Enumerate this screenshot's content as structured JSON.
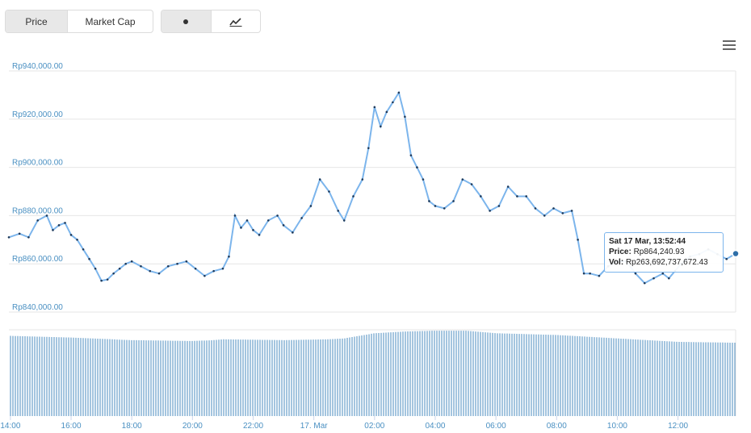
{
  "controls": {
    "metric": {
      "options": [
        "Price",
        "Market Cap"
      ],
      "selected": "Price"
    },
    "chart_type": {
      "options": [
        "dot-icon",
        "line-chart-icon"
      ],
      "selected": "dot-icon"
    },
    "menu_icon": "hamburger-menu-icon"
  },
  "tooltip": {
    "date": "Sat 17 Mar, 13:52:44",
    "price_label": "Price:",
    "price_value": "Rp864,240.93",
    "vol_label": "Vol:",
    "vol_value": "Rp263,692,737,672.43"
  },
  "chart_data": {
    "type": "line",
    "colors": {
      "line": "#7cb5ec",
      "marker": "#1f3a5a",
      "volume": "#4a8bbf",
      "axis_text": "#4a90c2"
    },
    "y_ticks": [
      "Rp940,000.00",
      "Rp920,000.00",
      "Rp900,000.00",
      "Rp880,000.00",
      "Rp860,000.00",
      "Rp840,000.00"
    ],
    "ylim": [
      840000,
      940000
    ],
    "x_ticks": [
      "14:00",
      "16:00",
      "18:00",
      "20:00",
      "22:00",
      "17. Mar",
      "02:00",
      "04:00",
      "06:00",
      "08:00",
      "10:00",
      "12:00"
    ],
    "x_tick_hours": [
      14,
      16,
      18,
      20,
      22,
      24,
      26,
      28,
      30,
      32,
      34,
      36
    ],
    "xlim": [
      13.95,
      37.9
    ],
    "series": [
      {
        "points": [
          [
            13.95,
            871000
          ],
          [
            14.3,
            872500
          ],
          [
            14.6,
            871000
          ],
          [
            14.9,
            878000
          ],
          [
            15.2,
            880000
          ],
          [
            15.4,
            874000
          ],
          [
            15.6,
            876000
          ],
          [
            15.8,
            877000
          ],
          [
            16.0,
            872000
          ],
          [
            16.2,
            870000
          ],
          [
            16.4,
            866000
          ],
          [
            16.6,
            862000
          ],
          [
            16.8,
            858000
          ],
          [
            17.0,
            853000
          ],
          [
            17.2,
            853500
          ],
          [
            17.4,
            856000
          ],
          [
            17.6,
            858000
          ],
          [
            17.8,
            860000
          ],
          [
            18.0,
            861000
          ],
          [
            18.3,
            859000
          ],
          [
            18.6,
            857000
          ],
          [
            18.9,
            856000
          ],
          [
            19.2,
            859000
          ],
          [
            19.5,
            860000
          ],
          [
            19.8,
            861000
          ],
          [
            20.1,
            858000
          ],
          [
            20.4,
            855000
          ],
          [
            20.7,
            857000
          ],
          [
            21.0,
            858000
          ],
          [
            21.2,
            863000
          ],
          [
            21.4,
            880000
          ],
          [
            21.6,
            875000
          ],
          [
            21.8,
            878000
          ],
          [
            22.0,
            874000
          ],
          [
            22.2,
            872000
          ],
          [
            22.5,
            878000
          ],
          [
            22.8,
            880000
          ],
          [
            23.0,
            876000
          ],
          [
            23.3,
            873000
          ],
          [
            23.6,
            879000
          ],
          [
            23.9,
            884000
          ],
          [
            24.2,
            895000
          ],
          [
            24.5,
            890000
          ],
          [
            24.8,
            882000
          ],
          [
            25.0,
            878000
          ],
          [
            25.3,
            888000
          ],
          [
            25.6,
            895000
          ],
          [
            25.8,
            908000
          ],
          [
            26.0,
            925000
          ],
          [
            26.2,
            917000
          ],
          [
            26.4,
            923000
          ],
          [
            26.6,
            927000
          ],
          [
            26.8,
            931000
          ],
          [
            27.0,
            921000
          ],
          [
            27.2,
            905000
          ],
          [
            27.4,
            900000
          ],
          [
            27.6,
            895000
          ],
          [
            27.8,
            886000
          ],
          [
            28.0,
            884000
          ],
          [
            28.3,
            883000
          ],
          [
            28.6,
            886000
          ],
          [
            28.9,
            895000
          ],
          [
            29.2,
            893000
          ],
          [
            29.5,
            888000
          ],
          [
            29.8,
            882000
          ],
          [
            30.1,
            884000
          ],
          [
            30.4,
            892000
          ],
          [
            30.7,
            888000
          ],
          [
            31.0,
            888000
          ],
          [
            31.3,
            883000
          ],
          [
            31.6,
            880000
          ],
          [
            31.9,
            883000
          ],
          [
            32.2,
            881000
          ],
          [
            32.5,
            882000
          ],
          [
            32.7,
            870000
          ],
          [
            32.9,
            856000
          ],
          [
            33.1,
            856000
          ],
          [
            33.4,
            855000
          ],
          [
            33.7,
            859000
          ],
          [
            34.0,
            861000
          ],
          [
            34.3,
            861000
          ],
          [
            34.6,
            856000
          ],
          [
            34.9,
            852000
          ],
          [
            35.2,
            854000
          ],
          [
            35.5,
            856000
          ],
          [
            35.7,
            854000
          ],
          [
            35.9,
            857000
          ],
          [
            36.1,
            860000
          ],
          [
            36.4,
            863000
          ],
          [
            36.7,
            864000
          ],
          [
            37.0,
            866000
          ],
          [
            37.3,
            864000
          ],
          [
            37.6,
            862000
          ],
          [
            37.9,
            864240.93
          ]
        ]
      }
    ],
    "hover_point": {
      "x": 37.9,
      "y": 864240.93
    },
    "volume_levels": [
      [
        13.95,
        0.93
      ],
      [
        16.0,
        0.91
      ],
      [
        18.0,
        0.88
      ],
      [
        20.0,
        0.87
      ],
      [
        20.7,
        0.88
      ],
      [
        21.0,
        0.89
      ],
      [
        23.0,
        0.88
      ],
      [
        24.5,
        0.89
      ],
      [
        25.0,
        0.9
      ],
      [
        25.5,
        0.93
      ],
      [
        26.0,
        0.96
      ],
      [
        27.0,
        0.98
      ],
      [
        28.0,
        0.99
      ],
      [
        29.0,
        0.99
      ],
      [
        30.0,
        0.96
      ],
      [
        31.0,
        0.95
      ],
      [
        32.0,
        0.94
      ],
      [
        33.0,
        0.92
      ],
      [
        34.0,
        0.9
      ],
      [
        35.0,
        0.88
      ],
      [
        36.0,
        0.86
      ],
      [
        37.9,
        0.85
      ]
    ]
  }
}
